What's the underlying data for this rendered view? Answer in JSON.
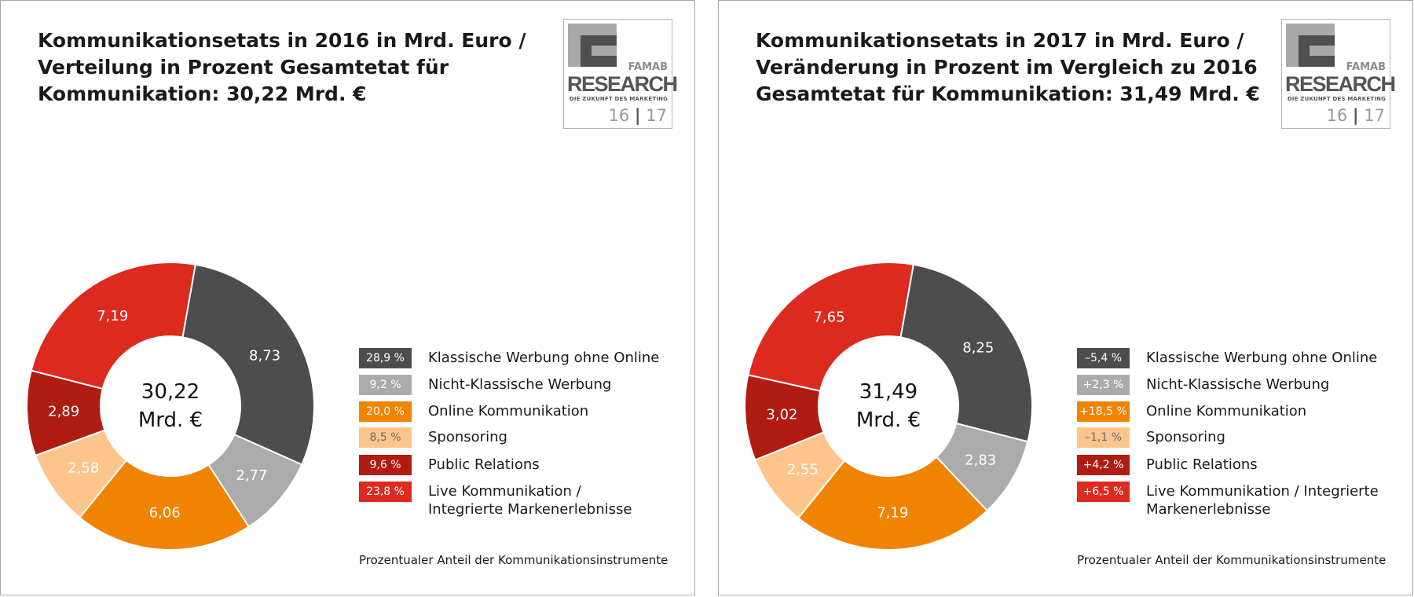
{
  "logo": {
    "brand": "FAMAB",
    "name": "RESEARCH",
    "tagline": "DIE ZUKUNFT DES MARKETING",
    "year_a": "16",
    "year_b": "17",
    "colors": {
      "light": "#a8a8a8",
      "dark": "#4f4f4f"
    }
  },
  "chart_data": [
    {
      "type": "pie",
      "title_lines": [
        "Kommunikationsetats in 2016 in Mrd. Euro /",
        "Verteilung in Prozent Gesamtetat für",
        "Kommunikation: 30,22 Mrd. €"
      ],
      "center_value": "30,22",
      "center_unit": "Mrd. €",
      "categories": [
        "Klassische Werbung ohne Online",
        "Nicht-Klassische Werbung",
        "Online Kommunikation",
        "Sponsoring",
        "Public Relations",
        "Live Kommunikation / Integrierte Markenerlebnisse"
      ],
      "values": [
        8.73,
        2.77,
        6.06,
        2.58,
        2.89,
        7.19
      ],
      "value_labels": [
        "8,73",
        "2,77",
        "6,06",
        "2,58",
        "2,89",
        "7,19"
      ],
      "legend_badges": [
        "28,9 %",
        "9,2 %",
        "20,0 %",
        "8,5 %",
        "9,6 %",
        "23,8 %"
      ],
      "legend_lines": [
        [
          "Klassische Werbung ohne Online"
        ],
        [
          "Nicht-Klassische Werbung"
        ],
        [
          "Online Kommunikation"
        ],
        [
          "Sponsoring"
        ],
        [
          "Public Relations"
        ],
        [
          "Live Kommunikation /",
          "Integrierte Markenerlebnisse"
        ]
      ],
      "colors": [
        "#4d4d4d",
        "#ababab",
        "#f08300",
        "#fdc48c",
        "#b01b12",
        "#dd2a1e"
      ],
      "label_colors": [
        "#ffffff",
        "#ffffff",
        "#ffffff",
        "#ffffff",
        "#ffffff",
        "#ffffff"
      ],
      "badge_text_colors": [
        "#ffffff",
        "#ffffff",
        "#ffffff",
        "#6b6b6b",
        "#ffffff",
        "#ffffff"
      ],
      "footnote": "Prozentualer Anteil der Kommunikationsinstrumente"
    },
    {
      "type": "pie",
      "title_lines": [
        "Kommunikationsetats in 2017 in Mrd. Euro /",
        "Veränderung in Prozent im Vergleich zu 2016",
        "Gesamtetat für Kommunikation: 31,49 Mrd. €"
      ],
      "center_value": "31,49",
      "center_unit": "Mrd. €",
      "categories": [
        "Klassische Werbung ohne Online",
        "Nicht-Klassische Werbung",
        "Online Kommunikation",
        "Sponsoring",
        "Public Relations",
        "Live Kommunikation / Integrierte Markenerlebnisse"
      ],
      "values": [
        8.25,
        2.83,
        7.19,
        2.55,
        3.02,
        7.65
      ],
      "value_labels": [
        "8,25",
        "2,83",
        "7,19",
        "2,55",
        "3,02",
        "7,65"
      ],
      "legend_badges": [
        "–5,4 %",
        "+2,3 %",
        "+18,5 %",
        "–1,1 %",
        "+4,2 %",
        "+6,5 %"
      ],
      "legend_lines": [
        [
          "Klassische Werbung ohne Online"
        ],
        [
          "Nicht-Klassische Werbung"
        ],
        [
          "Online Kommunikation"
        ],
        [
          "Sponsoring"
        ],
        [
          "Public Relations"
        ],
        [
          "Live Kommunikation / Integrierte",
          "Markenerlebnisse"
        ]
      ],
      "colors": [
        "#4d4d4d",
        "#ababab",
        "#f08300",
        "#fdc48c",
        "#b01b12",
        "#dd2a1e"
      ],
      "label_colors": [
        "#ffffff",
        "#ffffff",
        "#ffffff",
        "#ffffff",
        "#ffffff",
        "#ffffff"
      ],
      "badge_text_colors": [
        "#ffffff",
        "#ffffff",
        "#ffffff",
        "#6b6b6b",
        "#ffffff",
        "#ffffff"
      ],
      "footnote": "Prozentualer Anteil der Kommunikationsinstrumente"
    }
  ]
}
